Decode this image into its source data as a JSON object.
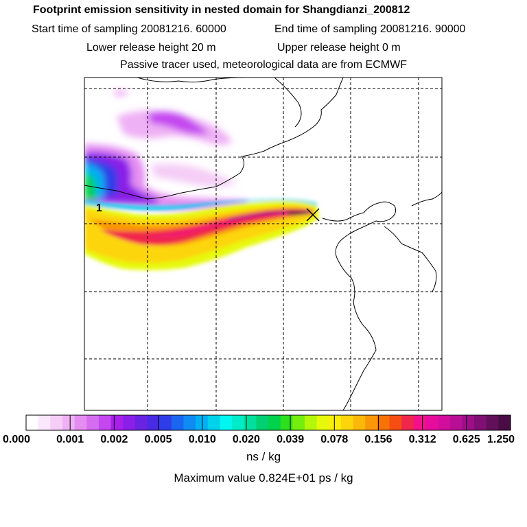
{
  "header": {
    "title": "Footprint emission sensitivity in nested domain for Shangdianzi_200812",
    "start_label": "Start time of sampling 20081216. 60000",
    "end_label": "End time of sampling 20081216. 90000",
    "lower_label": "Lower release height   20 m",
    "upper_label": "Upper release height    0 m",
    "tracer_label": "Passive tracer used, meteorological data are from ECMWF"
  },
  "map": {
    "release_number": "1"
  },
  "chart_data": {
    "type": "heatmap",
    "title": "Footprint emission sensitivity in nested domain for Shangdianzi_200812",
    "colorbar": {
      "tick_labels": [
        "0.000",
        "0.001",
        "0.002",
        "0.005",
        "0.010",
        "0.020",
        "0.039",
        "0.078",
        "0.156",
        "0.312",
        "0.625",
        "1.250"
      ],
      "ticks": [
        0.0,
        0.001,
        0.002,
        0.005,
        0.01,
        0.02,
        0.039,
        0.078,
        0.156,
        0.312,
        0.625,
        1.25
      ],
      "colors": [
        "#ffffff",
        "#fbe7fb",
        "#f5cdf7",
        "#efb1f5",
        "#e48ef2",
        "#d66df0",
        "#c447f0",
        "#a91fec",
        "#8a1fe8",
        "#6a22e3",
        "#4a2be4",
        "#2f3de8",
        "#1b66f0",
        "#0f8cf3",
        "#00b0f2",
        "#00d2ec",
        "#00f6f0",
        "#00ecc8",
        "#00e09c",
        "#00cf72",
        "#00d24a",
        "#2de01d",
        "#74ee0d",
        "#b4f70a",
        "#e6f90a",
        "#fdee0a",
        "#fdd50a",
        "#fcb808",
        "#fa9706",
        "#f87205",
        "#f64d12",
        "#f1264b",
        "#f2118b",
        "#e80c9c",
        "#d30d9e",
        "#b90f96",
        "#9c0f88",
        "#7f0f73",
        "#62105a",
        "#4a0c45"
      ],
      "units": "ns / kg"
    },
    "max_value_label": "Maximum value  0.824E+01 ps / kg"
  }
}
